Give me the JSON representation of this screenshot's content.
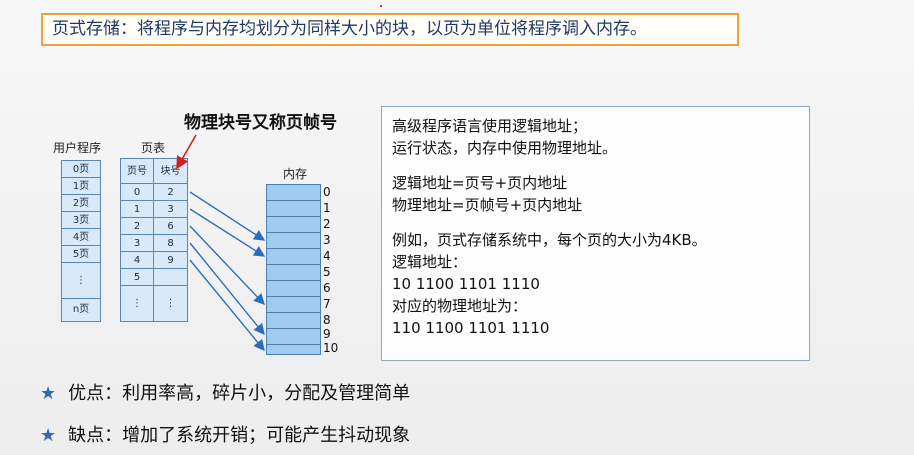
{
  "title": "页式存储：将程序与内存均划分为同样大小的块，以页为单位将程序调入内存。",
  "annotation": "物理块号又称页帧号",
  "user_program": {
    "label": "用户程序",
    "pages": [
      "0页",
      "1页",
      "2页",
      "3页",
      "4页",
      "5页",
      "⋮",
      "n页"
    ]
  },
  "page_table": {
    "label": "页表",
    "headers": [
      "页号",
      "块号"
    ],
    "rows": [
      [
        "0",
        "2"
      ],
      [
        "1",
        "3"
      ],
      [
        "2",
        "6"
      ],
      [
        "3",
        "8"
      ],
      [
        "4",
        "9"
      ],
      [
        "5",
        ""
      ],
      [
        "⋮",
        "⋮"
      ]
    ]
  },
  "memory": {
    "label": "内存",
    "block_numbers": [
      "0",
      "1",
      "2",
      "3",
      "4",
      "5",
      "6",
      "7",
      "8",
      "9",
      "10"
    ]
  },
  "info": {
    "line1": "高级程序语言使用逻辑地址；",
    "line2": "运行状态，内存中使用物理地址。",
    "line3": "逻辑地址=页号+页内地址",
    "line4": "物理地址=页帧号+页内地址",
    "line5": "例如，页式存储系统中，每个页的大小为4KB。",
    "line6": "逻辑地址：",
    "line7": "10 1100 1101 1110",
    "line8": "对应的物理地址为：",
    "line9": "110 1100 1101 1110"
  },
  "bullets": {
    "pro": "优点：利用率高，碎片小，分配及管理简单",
    "con": "缺点：增加了系统开销；可能产生抖动现象"
  },
  "colors": {
    "accent_border": "#f0a23a",
    "cell_fill": "#d8e9f7",
    "memory_fill": "#9fcbee",
    "arrow": "#2a6fbd",
    "annotation_arrow": "#d42020"
  }
}
